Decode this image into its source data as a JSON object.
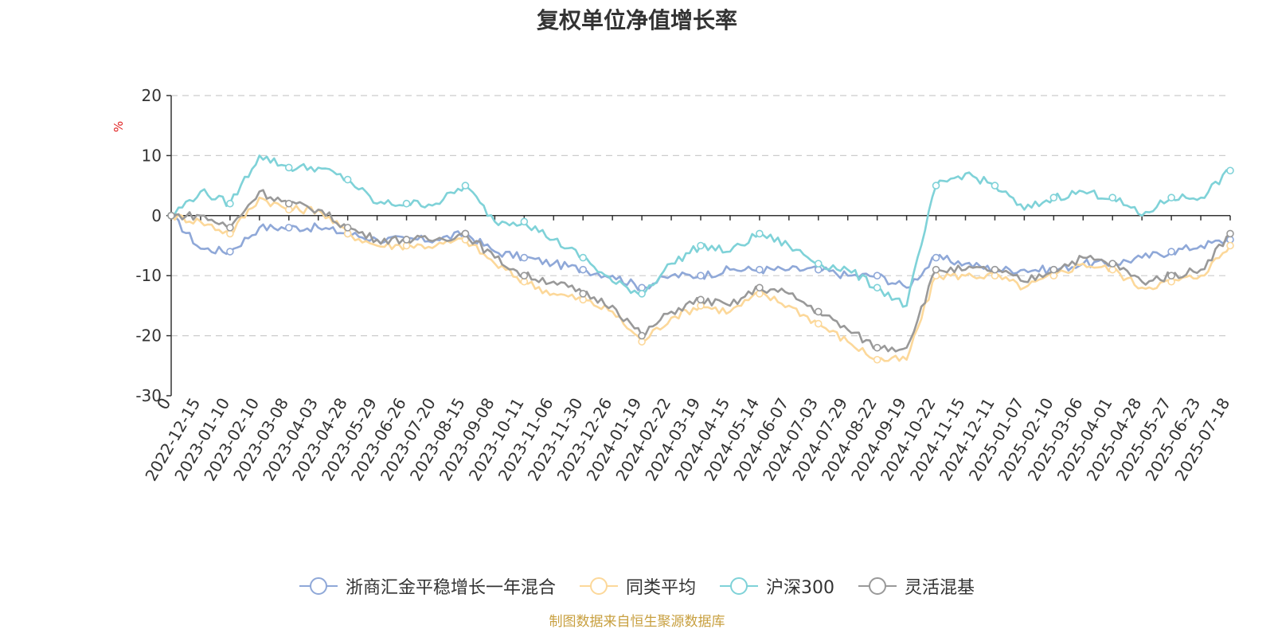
{
  "chart_data": {
    "type": "line",
    "title": "复权单位净值增长率",
    "ylabel": "%",
    "ylim": [
      -30,
      20
    ],
    "yticks": [
      20,
      10,
      0,
      -10,
      -20,
      -30
    ],
    "grid": true,
    "legend_position": "bottom",
    "x_tick_labels": [
      "0",
      "2022-12-15",
      "2023-01-10",
      "2023-02-10",
      "2023-03-08",
      "2023-04-03",
      "2023-04-28",
      "2023-05-29",
      "2023-06-26",
      "2023-07-20",
      "2023-08-15",
      "2023-09-08",
      "2023-10-11",
      "2023-11-06",
      "2023-11-30",
      "2023-12-26",
      "2024-01-19",
      "2024-02-22",
      "2024-03-19",
      "2024-04-15",
      "2024-05-14",
      "2024-06-07",
      "2024-07-03",
      "2024-07-29",
      "2024-08-22",
      "2024-09-19",
      "2024-10-22",
      "2024-11-15",
      "2024-12-11",
      "2025-01-07",
      "2025-02-10",
      "2025-03-06",
      "2025-04-01",
      "2025-04-28",
      "2025-05-27",
      "2025-06-23",
      "2025-07-18"
    ],
    "series": [
      {
        "name": "浙商汇金平稳增长一年混合",
        "color": "#8fa8d8",
        "values": [
          0,
          -5.5,
          -6,
          -2,
          -2,
          -2,
          -3,
          -4,
          -4,
          -4,
          -3,
          -6,
          -7,
          -8,
          -9,
          -10,
          -12,
          -10,
          -10,
          -9,
          -9,
          -9,
          -9,
          -10,
          -10,
          -12,
          -7,
          -8,
          -9,
          -9,
          -9,
          -8,
          -8,
          -7,
          -6,
          -5,
          -4
        ]
      },
      {
        "name": "同类平均",
        "color": "#fcd89a",
        "values": [
          0,
          -1,
          -3,
          3,
          1,
          1,
          -3,
          -5,
          -5,
          -5,
          -4,
          -8,
          -11,
          -13,
          -14,
          -16,
          -21,
          -17,
          -15,
          -16,
          -13,
          -15,
          -18,
          -21,
          -24,
          -24,
          -10,
          -10,
          -10,
          -12,
          -10,
          -8,
          -9,
          -12,
          -11,
          -10,
          -5
        ]
      },
      {
        "name": "沪深300",
        "color": "#7fd2d8",
        "values": [
          0,
          4,
          2,
          10,
          8,
          8,
          6,
          2,
          2,
          2,
          5,
          -1,
          -1,
          -4,
          -7,
          -11,
          -13,
          -8,
          -5,
          -6,
          -3,
          -5,
          -8,
          -9,
          -12,
          -15,
          5,
          7,
          5,
          1,
          3,
          4,
          3,
          0,
          3,
          3,
          7.5
        ]
      },
      {
        "name": "灵活混基",
        "color": "#999999",
        "values": [
          0,
          0,
          -2,
          4,
          2,
          1,
          -2,
          -4,
          -4,
          -4,
          -3,
          -7,
          -10,
          -11,
          -13,
          -15,
          -20,
          -16,
          -14,
          -15,
          -12,
          -13,
          -16,
          -19,
          -22,
          -22,
          -9,
          -9,
          -9,
          -11,
          -9,
          -7,
          -8,
          -11,
          -10,
          -9,
          -3
        ]
      }
    ]
  },
  "source_text": "制图数据来自恒生聚源数据库"
}
